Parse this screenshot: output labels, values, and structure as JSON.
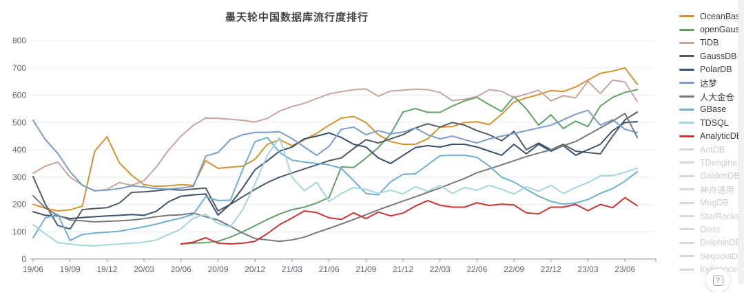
{
  "title": "墨天轮中国数据库流行度排行",
  "help_button": {
    "icon": "boxed-question-mark",
    "glyph": "?"
  },
  "axis_style": {
    "grid_color": "#e4edf6",
    "axis_color": "#8a9097",
    "tick_label_color": "#5a6472"
  },
  "chart_data": {
    "type": "line",
    "title": "墨天轮中国数据库流行度排行",
    "xlabel": "",
    "ylabel": "",
    "ylim": [
      0,
      800
    ],
    "y_ticks": [
      0,
      100,
      200,
      300,
      400,
      500,
      600,
      700,
      800
    ],
    "grid": true,
    "legend_position": "right",
    "x": [
      "19/06",
      "19/07",
      "19/08",
      "19/09",
      "19/10",
      "19/11",
      "19/12",
      "20/01",
      "20/02",
      "20/03",
      "20/04",
      "20/05",
      "20/06",
      "20/07",
      "20/08",
      "20/09",
      "20/10",
      "20/11",
      "20/12",
      "21/01",
      "21/02",
      "21/03",
      "21/04",
      "21/05",
      "21/06",
      "21/07",
      "21/08",
      "21/09",
      "21/10",
      "21/11",
      "21/12",
      "22/01",
      "22/02",
      "22/03",
      "22/04",
      "22/05",
      "22/06",
      "22/07",
      "22/08",
      "22/09",
      "22/10",
      "22/11",
      "22/12",
      "23/01",
      "23/02",
      "23/03",
      "23/04",
      "23/05",
      "23/06",
      "23/07"
    ],
    "x_tick_labels": [
      "19/06",
      "19/09",
      "19/12",
      "20/03",
      "20/06",
      "20/09",
      "20/12",
      "21/03",
      "21/06",
      "21/09",
      "21/12",
      "22/03",
      "22/06",
      "22/09",
      "22/12",
      "23/03",
      "23/06"
    ],
    "series": [
      {
        "name": "OceanBase",
        "color": "#d6912f",
        "enabled": true,
        "values": [
          200,
          186,
          176,
          180,
          194,
          395,
          448,
          352,
          307,
          272,
          266,
          268,
          272,
          270,
          360,
          332,
          336,
          340,
          365,
          420,
          437,
          415,
          437,
          460,
          490,
          516,
          522,
          500,
          455,
          430,
          420,
          420,
          440,
          483,
          485,
          500,
          503,
          492,
          530,
          575,
          590,
          602,
          617,
          613,
          630,
          655,
          680,
          688,
          700,
          640
        ]
      },
      {
        "name": "openGauss",
        "color": "#61a06b",
        "enabled": true,
        "values": [
          null,
          null,
          null,
          null,
          null,
          null,
          null,
          null,
          null,
          null,
          null,
          null,
          55,
          58,
          60,
          65,
          80,
          100,
          122,
          145,
          165,
          181,
          190,
          205,
          225,
          337,
          335,
          370,
          408,
          458,
          538,
          551,
          537,
          537,
          560,
          579,
          592,
          565,
          540,
          595,
          550,
          490,
          528,
          478,
          505,
          485,
          560,
          592,
          610,
          620
        ]
      },
      {
        "name": "TiDB",
        "color": "#c7a59d",
        "enabled": true,
        "values": [
          314,
          340,
          355,
          300,
          270,
          249,
          255,
          280,
          270,
          287,
          337,
          400,
          450,
          490,
          516,
          515,
          512,
          508,
          502,
          515,
          542,
          558,
          570,
          588,
          604,
          613,
          620,
          623,
          596,
          615,
          618,
          622,
          620,
          610,
          580,
          585,
          595,
          620,
          614,
          591,
          604,
          618,
          579,
          598,
          590,
          651,
          606,
          655,
          648,
          576
        ]
      },
      {
        "name": "GaussDB",
        "color": "#4e5a65",
        "enabled": true,
        "values": [
          302,
          200,
          123,
          110,
          181,
          185,
          188,
          205,
          244,
          246,
          250,
          255,
          252,
          256,
          260,
          176,
          200,
          228,
          255,
          280,
          300,
          315,
          330,
          345,
          360,
          370,
          405,
          437,
          425,
          440,
          455,
          480,
          495,
          483,
          500,
          490,
          470,
          455,
          433,
          468,
          400,
          425,
          400,
          420,
          395,
          390,
          385,
          450,
          510,
          538
        ]
      },
      {
        "name": "PolarDB",
        "color": "#39506b",
        "enabled": true,
        "values": [
          173,
          160,
          158,
          148,
          152,
          155,
          158,
          160,
          163,
          160,
          175,
          210,
          230,
          235,
          238,
          161,
          201,
          260,
          327,
          360,
          395,
          410,
          440,
          450,
          462,
          445,
          420,
          410,
          370,
          350,
          379,
          408,
          415,
          410,
          420,
          420,
          410,
          395,
          380,
          420,
          385,
          420,
          395,
          415,
          380,
          400,
          420,
          470,
          500,
          503
        ]
      },
      {
        "name": "达梦",
        "color": "#7b9bc8",
        "enabled": true,
        "values": [
          508,
          437,
          387,
          320,
          270,
          250,
          252,
          258,
          268,
          264,
          258,
          256,
          260,
          266,
          377,
          390,
          437,
          455,
          464,
          464,
          466,
          441,
          410,
          380,
          412,
          475,
          483,
          455,
          470,
          458,
          465,
          480,
          455,
          440,
          450,
          437,
          425,
          440,
          450,
          460,
          470,
          480,
          490,
          510,
          530,
          545,
          490,
          510,
          475,
          463
        ]
      },
      {
        "name": "人大金仓",
        "color": "#75797c",
        "enabled": true,
        "values": [
          232,
          187,
          160,
          143,
          140,
          136,
          138,
          140,
          143,
          148,
          155,
          160,
          162,
          168,
          155,
          143,
          120,
          95,
          75,
          70,
          65,
          70,
          80,
          97,
          112,
          128,
          145,
          162,
          180,
          196,
          212,
          228,
          244,
          260,
          278,
          295,
          316,
          330,
          345,
          360,
          375,
          388,
          400,
          415,
          430,
          455,
          480,
          505,
          533,
          445
        ]
      },
      {
        "name": "GBase",
        "color": "#6faece",
        "enabled": true,
        "values": [
          78,
          151,
          164,
          68,
          90,
          95,
          98,
          102,
          110,
          118,
          128,
          140,
          150,
          164,
          228,
          214,
          215,
          327,
          430,
          445,
          390,
          362,
          355,
          350,
          345,
          332,
          287,
          240,
          235,
          283,
          310,
          312,
          345,
          378,
          380,
          380,
          372,
          340,
          300,
          282,
          255,
          230,
          211,
          201,
          205,
          218,
          240,
          258,
          285,
          320
        ]
      },
      {
        "name": "TDSQL",
        "color": "#a6d4de",
        "enabled": true,
        "values": [
          126,
          92,
          60,
          55,
          50,
          48,
          52,
          55,
          58,
          62,
          70,
          90,
          110,
          150,
          164,
          130,
          118,
          180,
          275,
          380,
          445,
          300,
          250,
          281,
          211,
          240,
          262,
          255,
          240,
          252,
          238,
          265,
          248,
          270,
          240,
          262,
          252,
          270,
          255,
          238,
          265,
          248,
          270,
          240,
          262,
          280,
          305,
          305,
          318,
          332
        ]
      },
      {
        "name": "AnalyticDB",
        "color": "#cc3333",
        "enabled": true,
        "values": [
          null,
          null,
          null,
          null,
          null,
          null,
          null,
          null,
          null,
          null,
          null,
          null,
          55,
          62,
          78,
          58,
          55,
          58,
          65,
          93,
          126,
          150,
          176,
          170,
          151,
          145,
          169,
          148,
          172,
          158,
          168,
          194,
          214,
          197,
          190,
          190,
          206,
          196,
          201,
          198,
          169,
          165,
          190,
          190,
          200,
          177,
          200,
          188,
          225,
          195
        ]
      },
      {
        "name": "AntDB",
        "color": "#d4d7db",
        "enabled": false,
        "values": []
      },
      {
        "name": "TDengine",
        "color": "#d4d7db",
        "enabled": false,
        "values": []
      },
      {
        "name": "GoldenDB",
        "color": "#d4d7db",
        "enabled": false,
        "values": []
      },
      {
        "name": "神舟通用",
        "color": "#d4d7db",
        "enabled": false,
        "values": []
      },
      {
        "name": "MogDB",
        "color": "#d4d7db",
        "enabled": false,
        "values": []
      },
      {
        "name": "StarRocks",
        "color": "#d4d7db",
        "enabled": false,
        "values": []
      },
      {
        "name": "Doris",
        "color": "#d4d7db",
        "enabled": false,
        "values": []
      },
      {
        "name": "DolphinDB",
        "color": "#d4d7db",
        "enabled": false,
        "values": []
      },
      {
        "name": "SequoiaDB",
        "color": "#d4d7db",
        "enabled": false,
        "values": []
      },
      {
        "name": "Kyligence",
        "color": "#d4d7db",
        "enabled": false,
        "values": []
      }
    ]
  }
}
